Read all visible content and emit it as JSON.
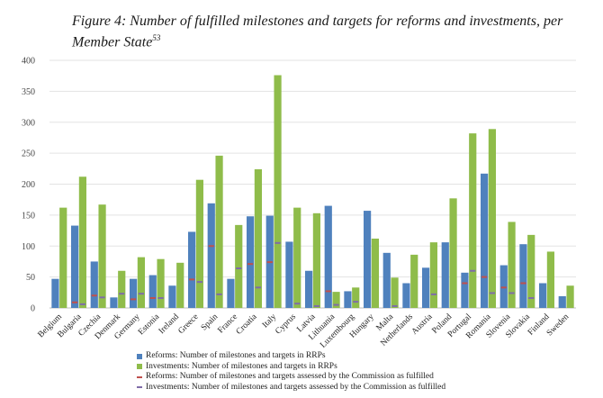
{
  "figure": {
    "title": "Figure 4: Number of fulfilled milestones and targets for reforms and investments, per Member State",
    "footnote_ref": "53"
  },
  "colors": {
    "reforms": "#4f81bd",
    "investments": "#8fbc4a",
    "reforms_fulfilled": "#c0504d",
    "investments_fulfilled": "#7f6ca8"
  },
  "chart_data": {
    "type": "bar",
    "categories": [
      "Belgium",
      "Bulgaria",
      "Czechia",
      "Denmark",
      "Germany",
      "Estonia",
      "Ireland",
      "Greece",
      "Spain",
      "France",
      "Croatia",
      "Italy",
      "Cyprus",
      "Latvia",
      "Lithuania",
      "Luxembourg",
      "Hungary",
      "Malta",
      "Netherlands",
      "Austria",
      "Poland",
      "Portugal",
      "Romania",
      "Slovenia",
      "Slovakia",
      "Finland",
      "Sweden"
    ],
    "series": [
      {
        "name": "Reforms: Number of milestones and targets in RRPs",
        "style": "bar",
        "values": [
          47,
          133,
          75,
          17,
          47,
          53,
          36,
          123,
          169,
          47,
          148,
          149,
          107,
          60,
          165,
          27,
          157,
          89,
          40,
          65,
          106,
          57,
          217,
          69,
          103,
          40,
          19
        ]
      },
      {
        "name": "Investments: Number of milestones and targets in RRPs",
        "style": "bar",
        "values": [
          162,
          212,
          167,
          60,
          82,
          79,
          73,
          207,
          246,
          134,
          224,
          376,
          162,
          153,
          26,
          33,
          112,
          49,
          86,
          106,
          177,
          282,
          289,
          139,
          118,
          91,
          36
        ]
      },
      {
        "name": "Reforms: Number of milestones and targets assessed by the Commission as fulfilled",
        "style": "marker",
        "values": [
          0,
          9,
          20,
          0,
          14,
          16,
          0,
          46,
          100,
          0,
          71,
          74,
          0,
          0,
          27,
          0,
          0,
          0,
          0,
          0,
          0,
          40,
          50,
          33,
          40,
          0,
          0
        ]
      },
      {
        "name": "Investments: Number of milestones and targets assessed by the Commission as fulfilled",
        "style": "marker",
        "values": [
          0,
          6,
          17,
          23,
          23,
          16,
          0,
          42,
          22,
          64,
          33,
          105,
          7,
          3,
          5,
          10,
          0,
          3,
          0,
          22,
          0,
          60,
          24,
          24,
          16,
          0,
          0
        ]
      }
    ],
    "y_ticks": [
      0,
      50,
      100,
      150,
      200,
      250,
      300,
      350,
      400
    ],
    "ylim": [
      0,
      400
    ],
    "grid": true,
    "legend_position": "bottom"
  }
}
